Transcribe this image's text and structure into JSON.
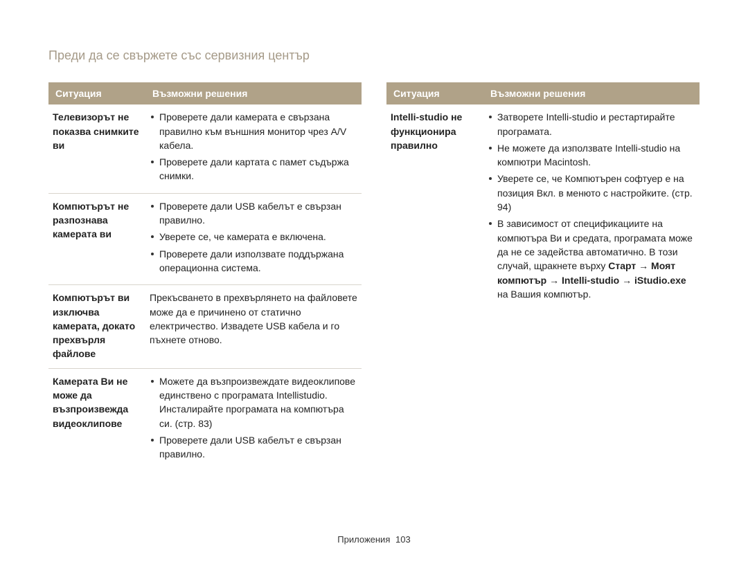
{
  "colors": {
    "header_bg": "#b0a288",
    "header_text": "#ffffff",
    "title_color": "#a59a88",
    "border": "#d8d4cc",
    "text": "#222222",
    "background": "#ffffff"
  },
  "typography": {
    "title_fontsize": 18,
    "body_fontsize": 14,
    "line_height": 1.45
  },
  "page_title": "Преди да се свържете със сервизния център",
  "headers": {
    "situation": "Ситуация",
    "solutions": "Възможни решения"
  },
  "left_rows": [
    {
      "situation": "Телевизорът не показва снимките ви",
      "bullets": [
        "Проверете дали камерата е свързана правилно към външния монитор чрез A/V кабела.",
        "Проверете дали картата с памет съдържа снимки."
      ]
    },
    {
      "situation": "Компютърът не разпознава камерата ви",
      "bullets": [
        "Проверете дали USB кабелът е свързан правилно.",
        "Уверете се, че камерата е включена.",
        "Проверете дали използвате поддържана операционна система."
      ]
    },
    {
      "situation": "Компютърът ви изключва камерата, докато прехвърля файлове",
      "text": "Прекъсването в прехвърлянето на файловете може да е причинено от статично електричество. Извадете USB кабела и го пъхнете отново."
    },
    {
      "situation": "Камерата Ви не може да възпроизвежда видеоклипове",
      "bullets": [
        "Можете  да възпроизвеждате видеоклипове единствено с програмата Intellistudio. Инсталирайте програмата на компютъра си. (стр. 83)",
        "Проверете дали USB кабелът е свързан правилно."
      ]
    }
  ],
  "right_rows": [
    {
      "situation": "Intelli-studio не функционира правилно",
      "bullets_html": [
        "Затворете Intelli-studio и рестартирайте програмата.",
        "Не можете да използвате Intelli-studio на компютри Macintosh.",
        "Уверете се, че Компютърен софтуер е на позиция Вкл. в менюто с настройките. (стр. 94)",
        "В зависимост от спецификациите на компютъра Ви и средата, програмата може да не се задейства автоматично. В този случай, щракнете върху <b>Старт → Моят компютър → Intelli-studio → iStudio.exe</b> на Вашия компютър."
      ]
    }
  ],
  "footer": {
    "label": "Приложения",
    "page": "103"
  }
}
